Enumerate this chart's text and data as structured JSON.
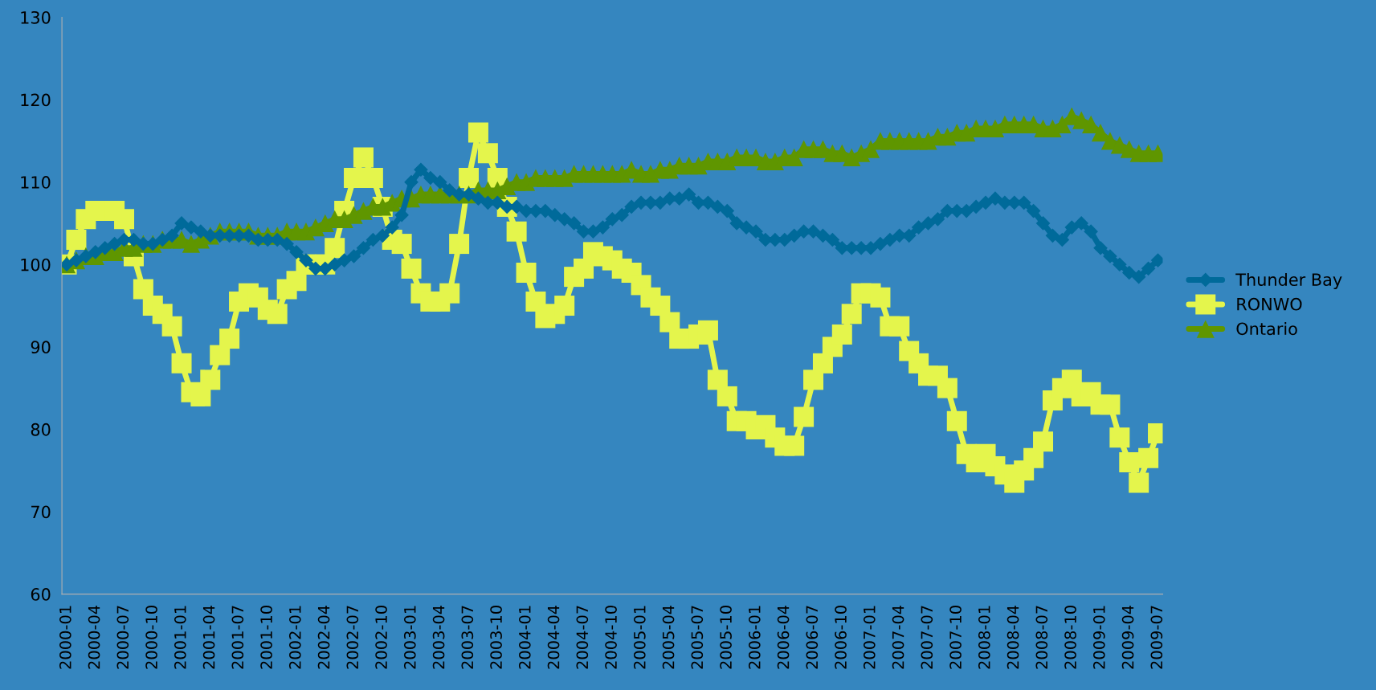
{
  "chart_data": {
    "type": "line",
    "categories": [
      "2000-01",
      null,
      null,
      "2000-04",
      null,
      null,
      "2000-07",
      null,
      null,
      "2000-10",
      null,
      null,
      "2001-01",
      null,
      null,
      "2001-04",
      null,
      null,
      "2001-07",
      null,
      null,
      "2001-10",
      null,
      null,
      "2002-01",
      null,
      null,
      "2002-04",
      null,
      null,
      "2002-07",
      null,
      null,
      "2002-10",
      null,
      null,
      "2003-01",
      null,
      null,
      "2003-04",
      null,
      null,
      "2003-07",
      null,
      null,
      "2003-10",
      null,
      null,
      "2004-01",
      null,
      null,
      "2004-04",
      null,
      null,
      "2004-07",
      null,
      null,
      "2004-10",
      null,
      null,
      "2005-01",
      null,
      null,
      "2005-04",
      null,
      null,
      "2005-07",
      null,
      null,
      "2005-10",
      null,
      null,
      "2006-01",
      null,
      null,
      "2006-04",
      null,
      null,
      "2006-07",
      null,
      null,
      "2006-10",
      null,
      null,
      "2007-01",
      null,
      null,
      "2007-04",
      null,
      null,
      "2007-07",
      null,
      null,
      "2007-10",
      null,
      null,
      "2008-01",
      null,
      null,
      "2008-04",
      null,
      null,
      "2008-07",
      null,
      null,
      "2008-10",
      null,
      null,
      "2009-01",
      null,
      null,
      "2009-04",
      null,
      null,
      "2009-07"
    ],
    "series": [
      {
        "name": "Thunder Bay",
        "color": "#006a9a",
        "marker": "diamond",
        "values": [
          100,
          100.5,
          101,
          101.5,
          102,
          102.5,
          103,
          103,
          102.5,
          102.5,
          103,
          103.5,
          105,
          104.5,
          104,
          103.5,
          103.5,
          103.5,
          103.5,
          103.5,
          103,
          103,
          103,
          102.5,
          101.5,
          100.5,
          99.5,
          99.5,
          100,
          100.5,
          101,
          102,
          103,
          103.5,
          104.5,
          106,
          110,
          111.5,
          110.5,
          110,
          109,
          108.5,
          108.5,
          108,
          107.5,
          107.5,
          107,
          107,
          106.5,
          106.5,
          106.5,
          106,
          105.5,
          105,
          104,
          104,
          104.5,
          105.5,
          106,
          107,
          107.5,
          107.5,
          107.5,
          108,
          108,
          108.5,
          107.5,
          107.5,
          107,
          106.5,
          105,
          104.5,
          104,
          103,
          103,
          103,
          103.5,
          104,
          104,
          103.5,
          103,
          102,
          102,
          102,
          102,
          102.5,
          103,
          103.5,
          103.5,
          104.5,
          105,
          105.5,
          106.5,
          106.5,
          106.5,
          107,
          107.5,
          108,
          107.5,
          107.5,
          107.5,
          106.5,
          105,
          103.5,
          103,
          104.5,
          105,
          104,
          102,
          101,
          100,
          99,
          98.5,
          99.5,
          100.5
        ]
      },
      {
        "name": "RONWO",
        "color": "#e4f54c",
        "marker": "square",
        "values": [
          100,
          103,
          105.5,
          106.5,
          106.5,
          106.5,
          105.5,
          101,
          97,
          95,
          94,
          92.5,
          88,
          84.5,
          84,
          86,
          89,
          91,
          95.5,
          96.5,
          96,
          94.5,
          94,
          97,
          98,
          100,
          100,
          100,
          102,
          106.5,
          110.5,
          113,
          110.5,
          107,
          103,
          102.5,
          99.5,
          96.5,
          95.5,
          95.5,
          96.5,
          102.5,
          110.5,
          116,
          113.5,
          110.5,
          107,
          104,
          99,
          95.5,
          93.5,
          94,
          95,
          98.5,
          99.5,
          101.5,
          101,
          100.5,
          99.5,
          99,
          97.5,
          96,
          95,
          93,
          91,
          91,
          91.5,
          92,
          86,
          84,
          81,
          81,
          80,
          80.5,
          79,
          78,
          78,
          81.5,
          86,
          88,
          90,
          91.5,
          94,
          96.5,
          96.5,
          96,
          92.5,
          92.5,
          89.5,
          88,
          86.5,
          86.5,
          85,
          81,
          77,
          76,
          77,
          75.5,
          74.5,
          73.5,
          75,
          76.5,
          78.5,
          83.5,
          85,
          86,
          84,
          84.5,
          83,
          83,
          79,
          76,
          73.5,
          76.5,
          79.5
        ]
      },
      {
        "name": "Ontario",
        "color": "#5f9600",
        "marker": "triangle",
        "values": [
          100,
          100.5,
          101,
          101,
          101.5,
          101.5,
          102,
          102,
          102.5,
          102.5,
          103,
          103,
          103,
          102.5,
          103,
          103.5,
          104,
          104,
          104,
          104,
          103.5,
          103.5,
          103.5,
          104,
          104,
          104,
          104.5,
          105,
          105.5,
          105.5,
          106,
          106.5,
          107,
          107,
          107.5,
          108,
          108,
          108.5,
          108.5,
          108.5,
          108.5,
          108.5,
          108.5,
          109,
          109,
          109,
          109.5,
          110,
          110,
          110.5,
          110.5,
          110.5,
          110.5,
          111,
          111,
          111,
          111,
          111,
          111,
          111.5,
          111,
          111,
          111.5,
          111.5,
          112,
          112,
          112,
          112.5,
          112.5,
          112.5,
          113,
          113,
          113,
          112.5,
          112.5,
          113,
          113,
          114,
          114,
          114,
          113.5,
          113.5,
          113,
          113.5,
          114,
          115,
          115,
          115,
          115,
          115,
          115,
          115.5,
          115.5,
          116,
          116,
          116.5,
          116.5,
          116.5,
          117,
          117,
          117,
          117,
          116.5,
          116.5,
          117,
          118,
          117.5,
          117,
          116,
          115,
          114.5,
          114,
          113.5,
          113.5,
          113.5
        ]
      }
    ],
    "ylim": [
      60,
      130
    ],
    "yticks": [
      60,
      70,
      80,
      90,
      100,
      110,
      120,
      130
    ],
    "grid": false,
    "legend": "right"
  }
}
